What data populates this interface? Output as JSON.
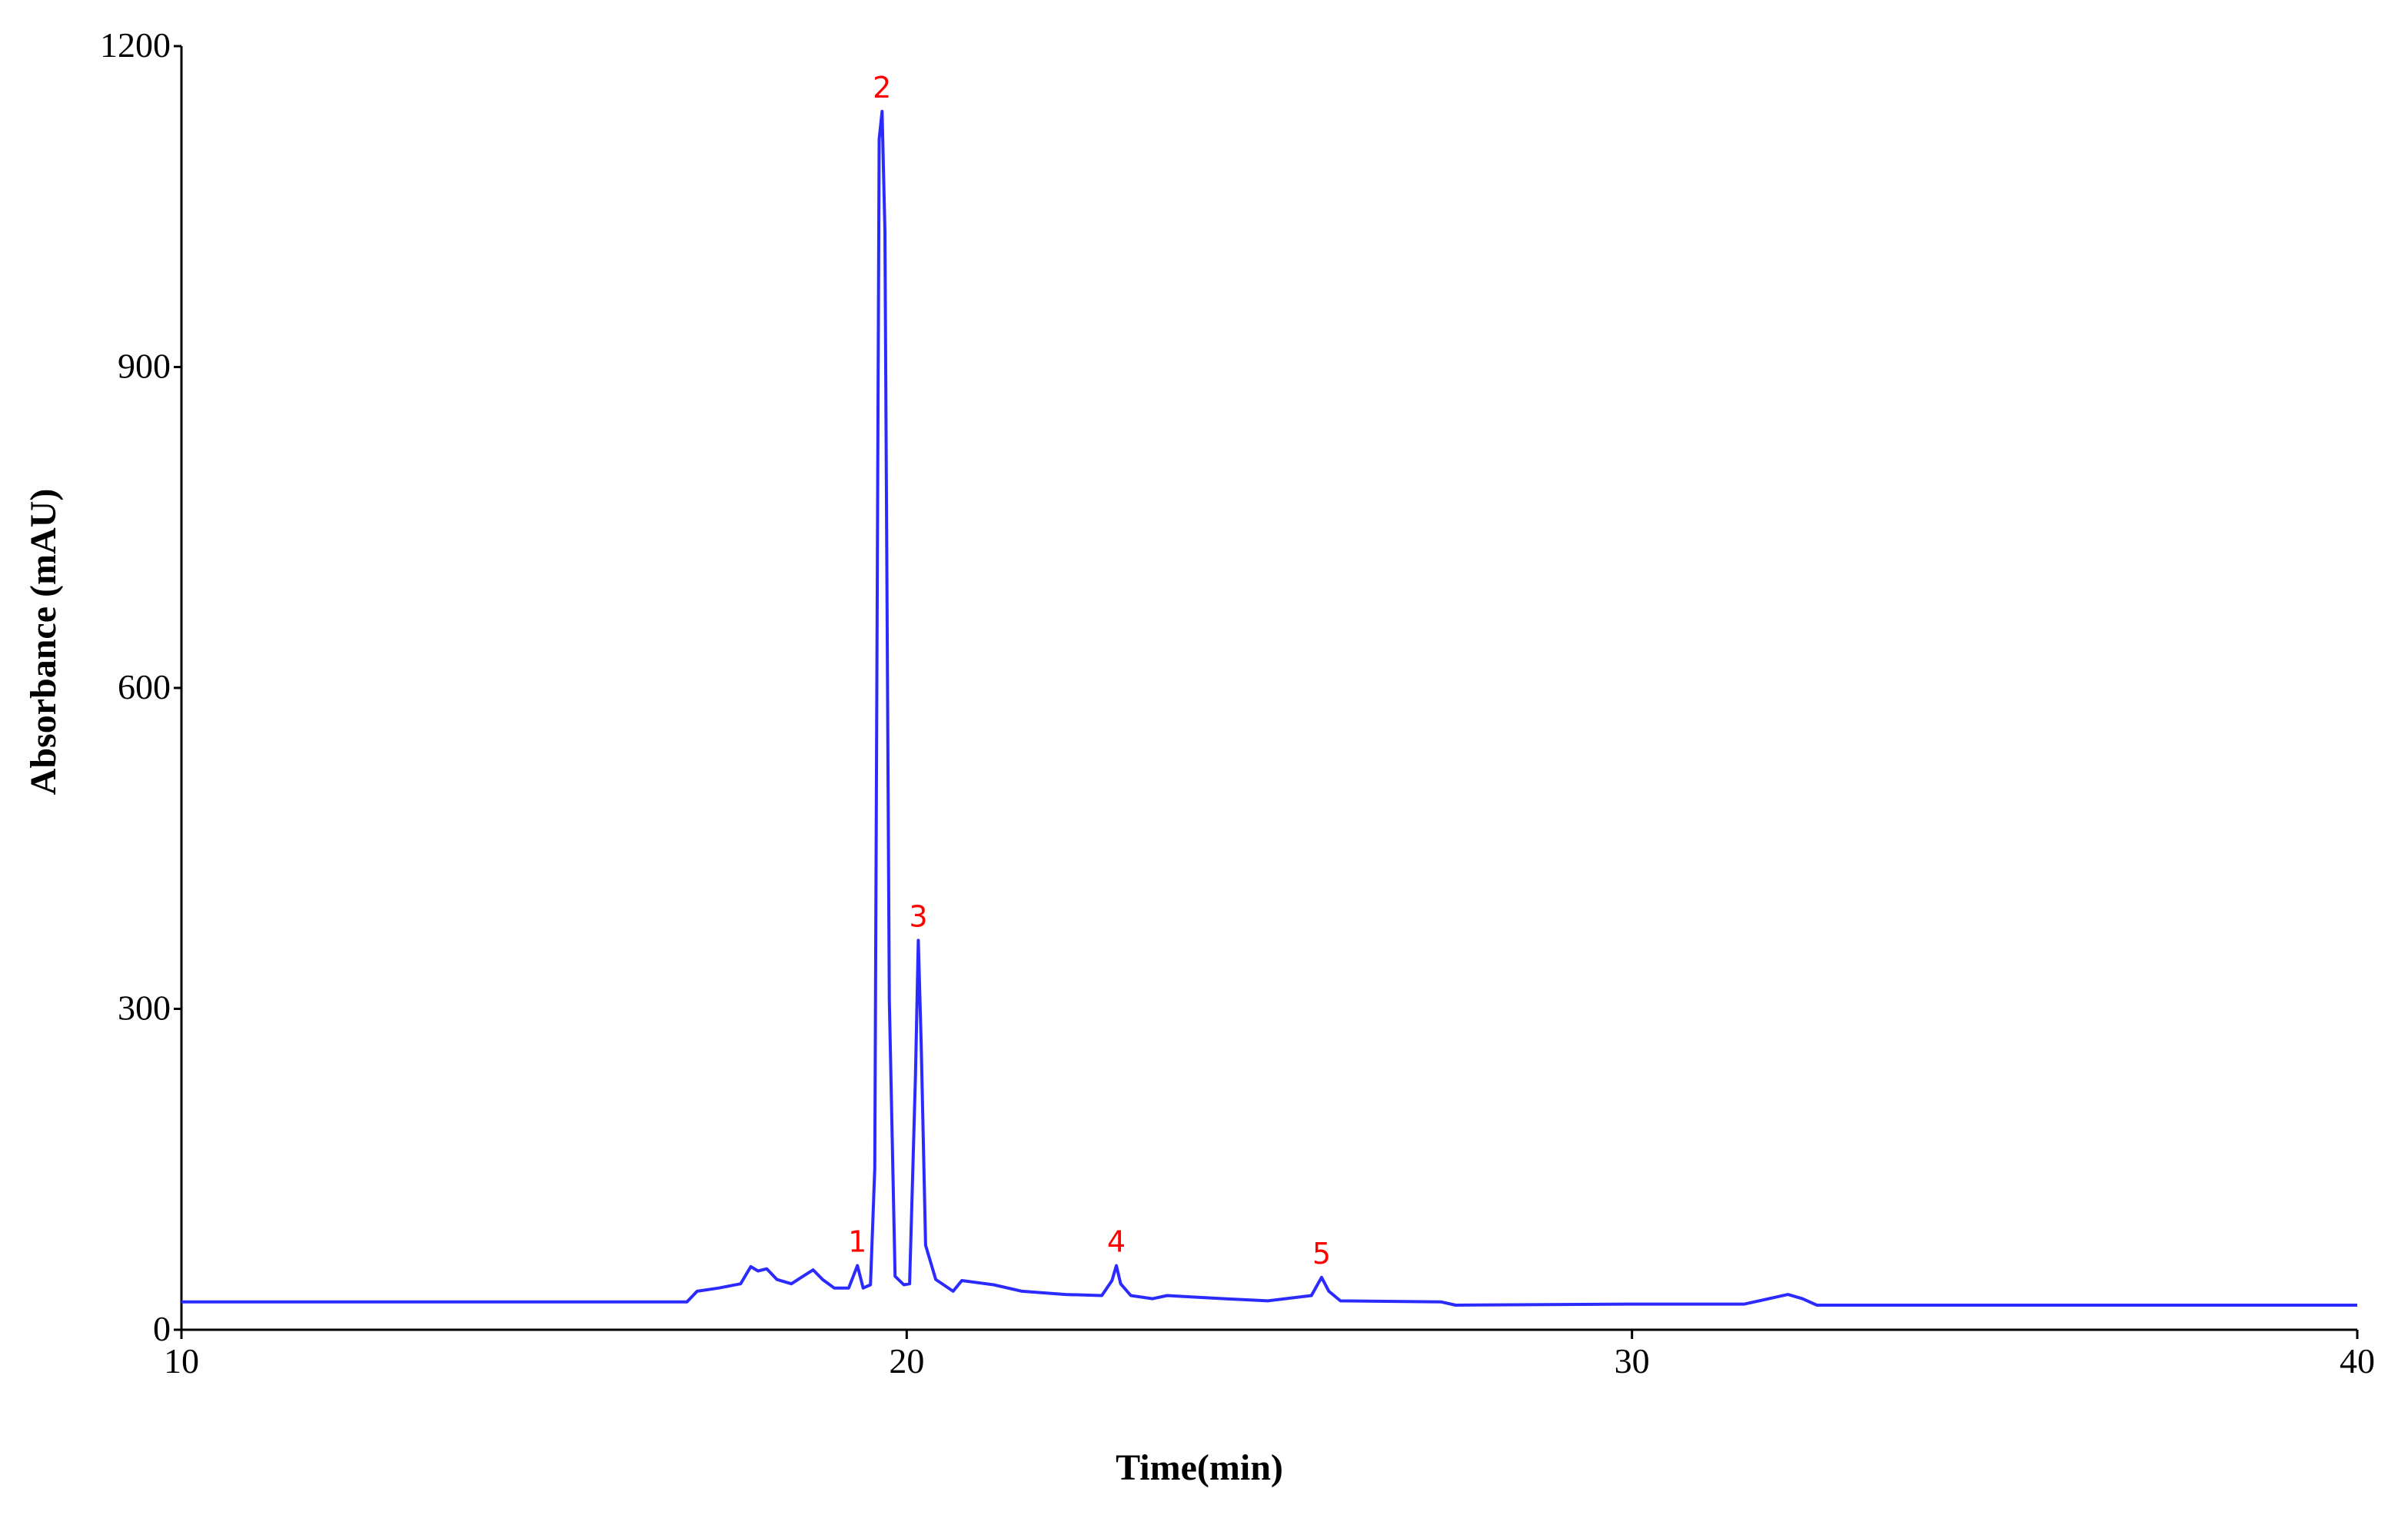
{
  "chart_data": {
    "type": "line",
    "xlabel": "Time(min)",
    "ylabel": "Absorbance  (mAU)",
    "color": "#2b2bff",
    "xlim": [
      10,
      40
    ],
    "xticks": [
      10,
      20,
      30,
      40
    ],
    "ylim": [
      0,
      1200
    ],
    "yticks": [
      0,
      300,
      600,
      900,
      1200
    ],
    "grid": false,
    "x": [
      10.0,
      16.97,
      17.11,
      17.41,
      17.71,
      17.85,
      17.95,
      18.07,
      18.21,
      18.41,
      18.57,
      18.71,
      18.84,
      19.0,
      19.2,
      19.32,
      19.4,
      19.5,
      19.56,
      19.62,
      19.66,
      19.7,
      19.76,
      19.84,
      19.96,
      20.04,
      20.12,
      20.16,
      20.2,
      20.26,
      20.4,
      20.64,
      20.76,
      21.2,
      21.59,
      22.19,
      22.69,
      22.83,
      22.89,
      22.95,
      23.09,
      23.39,
      23.59,
      24.38,
      24.98,
      25.58,
      25.72,
      25.82,
      25.98,
      27.37,
      27.57,
      29.96,
      31.55,
      32.15,
      32.35,
      32.55,
      40.0
    ],
    "values": [
      26,
      26,
      36,
      39,
      43,
      59,
      55,
      57,
      47,
      43,
      50,
      56,
      47,
      39,
      39,
      60,
      39,
      42,
      151,
      1113,
      1139,
      1027,
      309,
      50,
      42,
      43,
      237,
      364,
      266,
      79,
      47,
      36,
      46,
      42,
      36,
      33,
      32,
      46,
      60,
      43,
      32,
      29,
      32,
      29,
      27,
      32,
      49,
      36,
      27,
      26,
      23,
      24,
      24,
      33,
      29,
      23,
      23
    ],
    "annotations": [
      {
        "text": "1",
        "x": 19.32,
        "y": 60,
        "color": "#ff0000"
      },
      {
        "text": "2",
        "x": 19.66,
        "y": 1139,
        "color": "#ff0000"
      },
      {
        "text": "3",
        "x": 20.16,
        "y": 364,
        "color": "#ff0000"
      },
      {
        "text": "4",
        "x": 22.89,
        "y": 60,
        "color": "#ff0000"
      },
      {
        "text": "5",
        "x": 25.72,
        "y": 49,
        "color": "#ff0000"
      }
    ]
  }
}
